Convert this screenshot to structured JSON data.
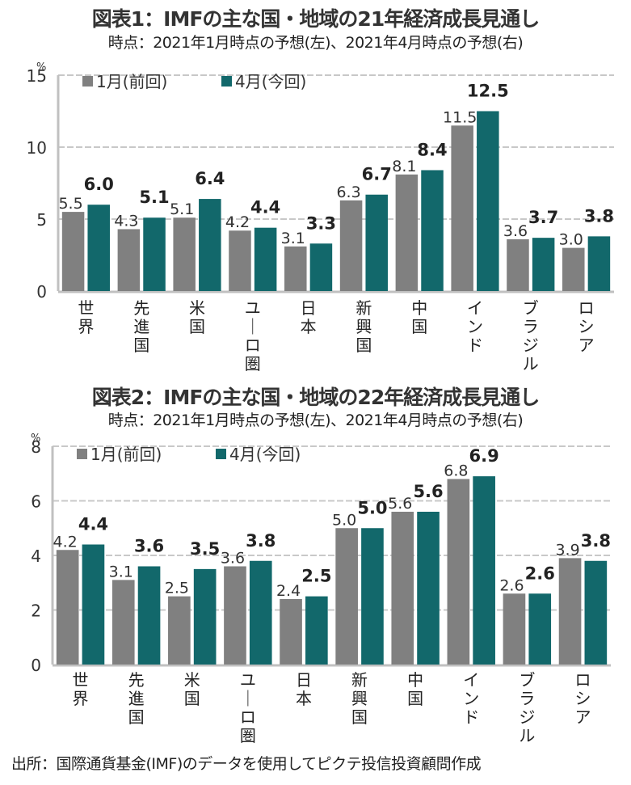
{
  "page": {
    "footer_source": "出所：国際通貨基金(IMF)のデータを使用してピクテ投信投資顧問作成"
  },
  "colors": {
    "jan": "#808080",
    "apr": "#12686b",
    "grid": "#c8c8c8",
    "axis": "#c0c0c0"
  },
  "chart_data": [
    {
      "type": "bar",
      "title": "図表1：IMFの主な国・地域の21年経済成長見通し",
      "subtitle": "時点：2021年1月時点の予想(左)、2021年4月時点の予想(右)",
      "unit": "%",
      "ylim": [
        0,
        15
      ],
      "yticks": [
        "0",
        "5",
        "10",
        "15"
      ],
      "ytick_values": [
        0,
        5,
        10,
        15
      ],
      "grid": true,
      "legend_placement": "top-left",
      "categories": [
        "世界",
        "先進国",
        "米国",
        "ユーロ圏",
        "日本",
        "新興国",
        "中国",
        "インド",
        "ブラジル",
        "ロシア"
      ],
      "series": [
        {
          "name": "1月(前回)",
          "key": "jan",
          "values": [
            5.5,
            4.3,
            5.1,
            4.2,
            3.1,
            6.3,
            8.1,
            11.5,
            3.6,
            3.0
          ],
          "labels": [
            "5.5",
            "4.3",
            "5.1",
            "4.2",
            "3.1",
            "6.3",
            "8.1",
            "11.5",
            "3.6",
            "3.0"
          ]
        },
        {
          "name": "4月(今回)",
          "key": "apr",
          "values": [
            6.0,
            5.1,
            6.4,
            4.4,
            3.3,
            6.7,
            8.4,
            12.5,
            3.7,
            3.8
          ],
          "labels": [
            "6.0",
            "5.1",
            "6.4",
            "4.4",
            "3.3",
            "6.7",
            "8.4",
            "12.5",
            "3.7",
            "3.8"
          ]
        }
      ]
    },
    {
      "type": "bar",
      "title": "図表2：IMFの主な国・地域の22年経済成長見通し",
      "subtitle": "時点：2021年1月時点の予想(左)、2021年4月時点の予想(右)",
      "unit": "%",
      "ylim": [
        0,
        8
      ],
      "yticks": [
        "0",
        "2",
        "4",
        "6",
        "8"
      ],
      "ytick_values": [
        0,
        2,
        4,
        6,
        8
      ],
      "grid": true,
      "legend_placement": "top-left",
      "categories": [
        "世界",
        "先進国",
        "米国",
        "ユーロ圏",
        "日本",
        "新興国",
        "中国",
        "インド",
        "ブラジル",
        "ロシア"
      ],
      "series": [
        {
          "name": "1月(前回)",
          "key": "jan",
          "values": [
            4.2,
            3.1,
            2.5,
            3.6,
            2.4,
            5.0,
            5.6,
            6.8,
            2.6,
            3.9
          ],
          "labels": [
            "4.2",
            "3.1",
            "2.5",
            "3.6",
            "2.4",
            "5.0",
            "5.6",
            "6.8",
            "2.6",
            "3.9"
          ]
        },
        {
          "name": "4月(今回)",
          "key": "apr",
          "values": [
            4.4,
            3.6,
            3.5,
            3.8,
            2.5,
            5.0,
            5.6,
            6.9,
            2.6,
            3.8
          ],
          "labels": [
            "4.4",
            "3.6",
            "3.5",
            "3.8",
            "2.5",
            "5.0",
            "5.6",
            "6.9",
            "2.6",
            "3.8"
          ]
        }
      ]
    }
  ]
}
